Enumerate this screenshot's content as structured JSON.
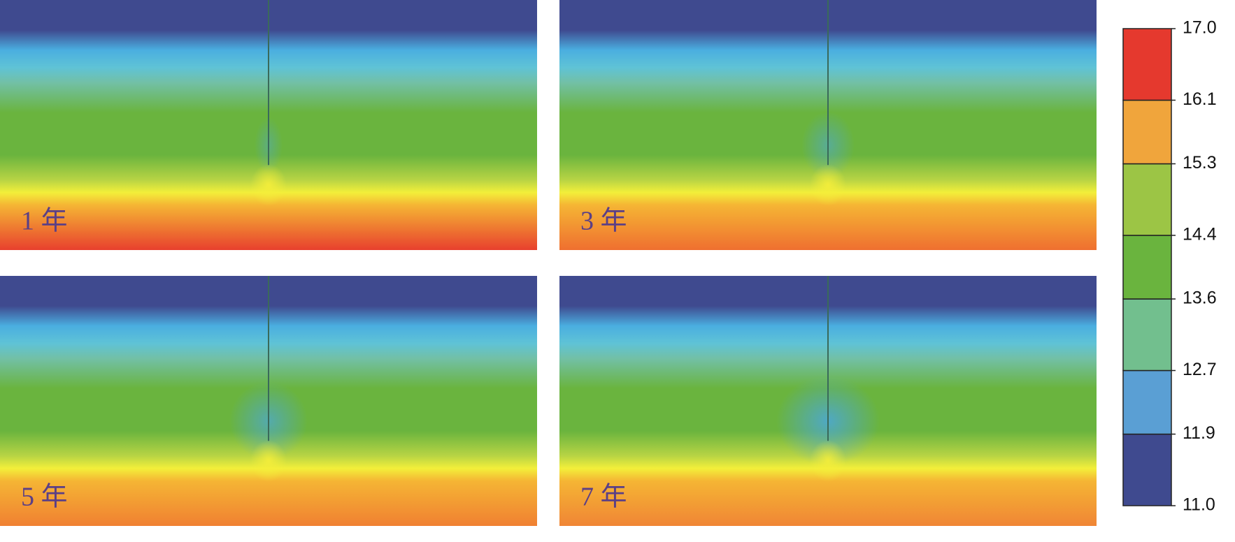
{
  "chart_data": {
    "type": "field-panels",
    "panels": [
      {
        "label": "1 年"
      },
      {
        "label": "3 年"
      },
      {
        "label": "5 年"
      },
      {
        "label": "7 年"
      }
    ],
    "colorbar": {
      "lim": [
        11,
        17
      ],
      "ticks": [
        {
          "value": 11,
          "label": "11.0"
        },
        11.9,
        12.7,
        13.6,
        14.4,
        15.3,
        16.1,
        {
          "value": 17,
          "label": "17.0"
        }
      ],
      "colors": [
        "#3f4a8f",
        "#5a9fd4",
        "#72bf8e",
        "#6ab43e",
        "#9cc545",
        "#f0a53c",
        "#e5392e"
      ]
    }
  }
}
